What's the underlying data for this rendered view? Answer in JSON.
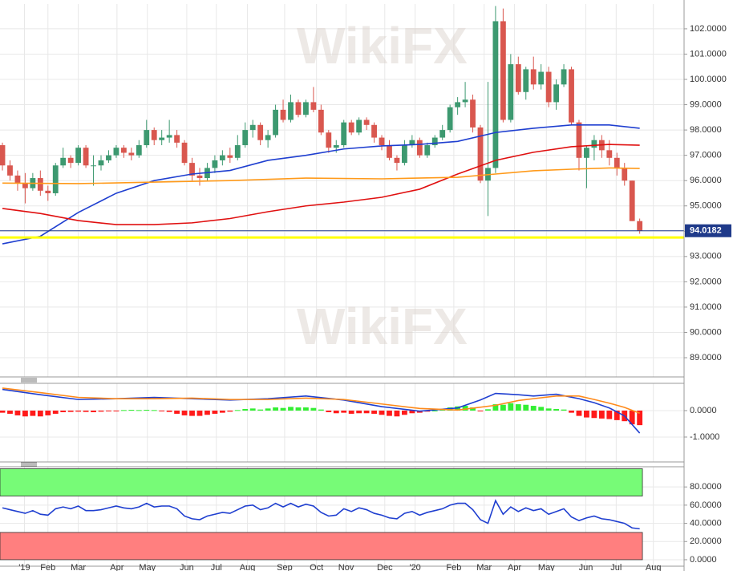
{
  "watermark": "WikiFX",
  "chart_data": [
    {
      "type": "candlestick",
      "xlim": [
        -0.32,
        89.85
      ],
      "ylim": [
        88.24,
        102.98
      ],
      "yticks": [
        {
          "value": 89,
          "label": "89.0000"
        },
        {
          "value": 90,
          "label": "90.0000"
        },
        {
          "value": 91,
          "label": "91.0000"
        },
        {
          "value": 92,
          "label": "92.0000"
        },
        {
          "value": 93,
          "label": "93.0000"
        },
        {
          "value": 94,
          "label": "94.0000"
        },
        {
          "value": 95,
          "label": "95.0000"
        },
        {
          "value": 96,
          "label": "96.0000"
        },
        {
          "value": 97,
          "label": "97.0000"
        },
        {
          "value": 98,
          "label": "98.0000"
        },
        {
          "value": 99,
          "label": "99.0000"
        },
        {
          "value": 100,
          "label": "100.0000"
        },
        {
          "value": 101,
          "label": "101.0000"
        },
        {
          "value": 102,
          "label": "102.0000"
        }
      ],
      "grid": true,
      "up_color": "#3d9970",
      "down_color": "#d9574f",
      "last_price": 94.0182,
      "last_price_color": "#1f3a8a",
      "support": 93.75,
      "support_color": "#ffff00",
      "candles": [
        [
          97.4,
          97.5,
          96.4,
          96.6
        ],
        [
          96.6,
          96.8,
          96.0,
          96.2
        ],
        [
          96.2,
          96.4,
          95.6,
          95.9
        ],
        [
          95.9,
          96.3,
          95.1,
          95.7
        ],
        [
          95.7,
          96.3,
          95.6,
          96.1
        ],
        [
          96.1,
          96.4,
          95.4,
          95.6
        ],
        [
          95.6,
          95.8,
          95.2,
          95.5
        ],
        [
          95.5,
          96.7,
          95.4,
          96.6
        ],
        [
          96.6,
          97.3,
          96.5,
          96.9
        ],
        [
          96.9,
          97.0,
          96.5,
          96.7
        ],
        [
          96.7,
          97.4,
          96.6,
          97.3
        ],
        [
          97.3,
          97.4,
          96.5,
          96.6
        ],
        [
          96.6,
          97.0,
          95.8,
          96.6
        ],
        [
          96.6,
          97.0,
          96.4,
          96.8
        ],
        [
          96.8,
          97.2,
          96.7,
          97.0
        ],
        [
          97.0,
          97.4,
          96.9,
          97.3
        ],
        [
          97.3,
          97.4,
          96.9,
          97.1
        ],
        [
          97.1,
          97.3,
          96.8,
          97.0
        ],
        [
          97.0,
          97.6,
          96.9,
          97.4
        ],
        [
          97.4,
          98.4,
          97.3,
          98.0
        ],
        [
          98.0,
          98.1,
          97.4,
          97.6
        ],
        [
          97.6,
          98.0,
          97.4,
          97.7
        ],
        [
          97.7,
          98.4,
          97.5,
          97.8
        ],
        [
          97.8,
          98.0,
          97.3,
          97.5
        ],
        [
          97.5,
          97.6,
          96.6,
          96.7
        ],
        [
          96.7,
          96.9,
          96.0,
          96.2
        ],
        [
          96.2,
          96.5,
          95.8,
          96.1
        ],
        [
          96.1,
          96.7,
          96.0,
          96.5
        ],
        [
          96.5,
          97.0,
          96.3,
          96.8
        ],
        [
          96.8,
          97.2,
          96.6,
          97.0
        ],
        [
          97.0,
          97.3,
          96.7,
          96.9
        ],
        [
          96.9,
          97.8,
          96.8,
          97.4
        ],
        [
          97.4,
          98.3,
          97.3,
          98.0
        ],
        [
          98.0,
          98.4,
          97.7,
          98.2
        ],
        [
          98.2,
          98.3,
          97.4,
          97.6
        ],
        [
          97.6,
          98.0,
          97.3,
          97.8
        ],
        [
          97.8,
          99.0,
          97.7,
          98.8
        ],
        [
          98.8,
          99.2,
          98.3,
          98.4
        ],
        [
          98.4,
          99.4,
          98.3,
          99.1
        ],
        [
          99.1,
          99.2,
          98.5,
          98.6
        ],
        [
          98.6,
          99.2,
          98.5,
          99.1
        ],
        [
          99.1,
          99.7,
          98.7,
          98.8
        ],
        [
          98.8,
          99.0,
          97.8,
          97.9
        ],
        [
          97.9,
          98.0,
          97.1,
          97.3
        ],
        [
          97.3,
          97.6,
          97.1,
          97.4
        ],
        [
          97.4,
          98.4,
          97.3,
          98.3
        ],
        [
          98.3,
          98.4,
          97.8,
          97.9
        ],
        [
          97.9,
          98.5,
          97.8,
          98.4
        ],
        [
          98.4,
          98.5,
          98.0,
          98.2
        ],
        [
          98.2,
          98.3,
          97.5,
          97.7
        ],
        [
          97.7,
          97.8,
          97.2,
          97.4
        ],
        [
          97.4,
          97.6,
          96.8,
          96.9
        ],
        [
          96.9,
          97.0,
          96.4,
          96.7
        ],
        [
          96.7,
          97.6,
          96.6,
          97.4
        ],
        [
          97.4,
          97.8,
          97.3,
          97.6
        ],
        [
          97.6,
          97.7,
          96.9,
          97.0
        ],
        [
          97.0,
          97.5,
          96.9,
          97.4
        ],
        [
          97.4,
          97.8,
          97.3,
          97.7
        ],
        [
          97.7,
          98.2,
          97.6,
          98.0
        ],
        [
          98.0,
          99.0,
          97.9,
          98.9
        ],
        [
          98.9,
          99.3,
          98.6,
          99.1
        ],
        [
          99.1,
          99.9,
          98.9,
          99.2
        ],
        [
          99.2,
          99.4,
          97.9,
          98.1
        ],
        [
          98.1,
          98.2,
          95.9,
          96.0
        ],
        [
          96.0,
          99.9,
          94.6,
          96.5
        ],
        [
          96.5,
          102.9,
          96.3,
          102.3
        ],
        [
          102.3,
          102.8,
          98.3,
          98.4
        ],
        [
          98.4,
          101.0,
          98.3,
          100.6
        ],
        [
          100.6,
          100.9,
          99.4,
          99.5
        ],
        [
          99.5,
          100.5,
          99.2,
          100.4
        ],
        [
          100.4,
          100.9,
          99.6,
          99.8
        ],
        [
          99.8,
          100.6,
          99.6,
          100.3
        ],
        [
          100.3,
          100.5,
          98.9,
          99.1
        ],
        [
          99.1,
          100.0,
          98.8,
          99.8
        ],
        [
          99.8,
          100.6,
          99.7,
          100.4
        ],
        [
          100.4,
          100.5,
          98.2,
          98.3
        ],
        [
          98.3,
          98.4,
          96.4,
          96.9
        ],
        [
          96.9,
          97.4,
          95.7,
          97.3
        ],
        [
          97.3,
          97.8,
          96.8,
          97.6
        ],
        [
          97.6,
          97.8,
          96.9,
          97.2
        ],
        [
          97.2,
          97.6,
          96.6,
          96.9
        ],
        [
          96.9,
          97.1,
          96.2,
          96.5
        ],
        [
          96.5,
          96.7,
          95.8,
          96.0
        ],
        [
          96.0,
          96.0,
          94.4,
          94.4
        ],
        [
          94.4,
          94.5,
          93.9,
          94.0182
        ]
      ],
      "series": [
        {
          "color": "#1f3fd0",
          "x": [
            0,
            5,
            10,
            15,
            20,
            25,
            30,
            35,
            40,
            45,
            50,
            55,
            60,
            65,
            70,
            75,
            80,
            84
          ],
          "values": [
            93.5,
            93.8,
            94.74,
            95.5,
            96.0,
            96.26,
            96.4,
            96.8,
            97.0,
            97.25,
            97.37,
            97.43,
            97.55,
            97.9,
            98.07,
            98.2,
            98.2,
            98.07
          ]
        },
        {
          "color": "#e01010",
          "x": [
            0,
            5,
            10,
            15,
            20,
            25,
            30,
            35,
            40,
            45,
            50,
            55,
            60,
            65,
            70,
            75,
            80,
            84
          ],
          "values": [
            94.9,
            94.7,
            94.42,
            94.26,
            94.26,
            94.33,
            94.5,
            94.77,
            95.0,
            95.15,
            95.34,
            95.66,
            96.26,
            96.8,
            97.12,
            97.34,
            97.43,
            97.4
          ]
        },
        {
          "color": "#ff9a1a",
          "x": [
            0,
            10,
            20,
            30,
            40,
            50,
            60,
            65,
            70,
            75,
            80,
            84
          ],
          "values": [
            95.9,
            95.88,
            95.94,
            96.0,
            96.1,
            96.07,
            96.13,
            96.26,
            96.39,
            96.45,
            96.5,
            96.48
          ]
        }
      ]
    },
    {
      "type": "macd",
      "xlim": [
        -0.32,
        89.85
      ],
      "ylim": [
        -1.94,
        1.03
      ],
      "yticks": [
        {
          "value": 0,
          "label": "0.0000"
        },
        {
          "value": -1,
          "label": "-1.0000"
        }
      ],
      "grid": true,
      "pos_color": "#33ee33",
      "neg_color": "#ff1a1a",
      "histogram": [
        -0.08,
        -0.12,
        -0.18,
        -0.22,
        -0.2,
        -0.22,
        -0.18,
        -0.12,
        -0.06,
        -0.05,
        -0.04,
        -0.05,
        -0.06,
        -0.04,
        -0.03,
        -0.02,
        0.02,
        0.03,
        0.02,
        0.03,
        0.02,
        -0.02,
        -0.05,
        -0.12,
        -0.18,
        -0.2,
        -0.2,
        -0.16,
        -0.12,
        -0.08,
        -0.04,
        0.02,
        0.06,
        0.08,
        0.04,
        0.08,
        0.12,
        0.1,
        0.14,
        0.12,
        0.12,
        0.1,
        0.04,
        -0.06,
        -0.1,
        -0.08,
        -0.12,
        -0.1,
        -0.1,
        -0.12,
        -0.16,
        -0.2,
        -0.22,
        -0.16,
        -0.1,
        -0.08,
        -0.04,
        0.0,
        0.05,
        0.12,
        0.16,
        0.18,
        0.12,
        -0.02,
        0.05,
        0.24,
        0.22,
        0.28,
        0.24,
        0.22,
        0.18,
        0.14,
        0.08,
        0.06,
        0.04,
        -0.08,
        -0.2,
        -0.26,
        -0.28,
        -0.3,
        -0.32,
        -0.36,
        -0.4,
        -0.52,
        -0.55
      ],
      "series": [
        {
          "color": "#1f3fd0",
          "x": [
            0,
            5,
            10,
            15,
            20,
            25,
            30,
            35,
            40,
            45,
            50,
            55,
            60,
            63,
            65,
            68,
            70,
            73,
            76,
            78,
            80,
            82,
            84
          ],
          "values": [
            0.8,
            0.6,
            0.42,
            0.45,
            0.5,
            0.45,
            0.4,
            0.45,
            0.55,
            0.4,
            0.15,
            -0.02,
            0.1,
            0.4,
            0.65,
            0.6,
            0.55,
            0.62,
            0.45,
            0.3,
            0.1,
            -0.2,
            -0.85
          ]
        },
        {
          "color": "#ff8a1a",
          "x": [
            0,
            5,
            10,
            15,
            20,
            25,
            30,
            35,
            40,
            45,
            50,
            55,
            60,
            65,
            68,
            70,
            73,
            76,
            78,
            80,
            82,
            84
          ],
          "values": [
            0.85,
            0.68,
            0.5,
            0.45,
            0.45,
            0.47,
            0.42,
            0.42,
            0.47,
            0.42,
            0.25,
            0.08,
            0.02,
            0.2,
            0.38,
            0.45,
            0.55,
            0.55,
            0.42,
            0.28,
            0.12,
            -0.1
          ]
        }
      ]
    },
    {
      "type": "rsi",
      "xlim": [
        -0.32,
        89.85
      ],
      "ylim": [
        -7.1,
        102.2
      ],
      "yticks": [
        {
          "value": 0,
          "label": "0.0000"
        },
        {
          "value": 20,
          "label": "20.0000"
        },
        {
          "value": 40,
          "label": "40.0000"
        },
        {
          "value": 60,
          "label": "60.0000"
        },
        {
          "value": 80,
          "label": "80.0000"
        }
      ],
      "grid": true,
      "bands": [
        {
          "from": 70,
          "to": 100,
          "color": "#77fb77"
        },
        {
          "from": 0,
          "to": 30,
          "color": "#ff7f7f"
        }
      ],
      "series": [
        {
          "color": "#1f3fd0",
          "values": [
            57,
            55,
            53,
            51,
            54,
            50,
            49,
            56,
            58,
            56,
            59,
            54,
            54,
            55,
            57,
            59,
            57,
            56,
            58,
            62,
            58,
            59,
            59,
            56,
            48,
            45,
            44,
            48,
            50,
            52,
            51,
            55,
            59,
            60,
            55,
            57,
            62,
            58,
            62,
            58,
            61,
            59,
            52,
            48,
            49,
            56,
            53,
            57,
            55,
            51,
            49,
            46,
            45,
            51,
            53,
            49,
            52,
            54,
            56,
            60,
            62,
            62,
            55,
            44,
            40,
            65,
            50,
            58,
            53,
            57,
            54,
            56,
            50,
            53,
            56,
            47,
            43,
            46,
            48,
            45,
            44,
            42,
            40,
            35,
            34
          ]
        }
      ],
      "xticks": [
        {
          "value": 2.9,
          "label": "'19"
        },
        {
          "value": 6,
          "label": "Feb"
        },
        {
          "value": 10,
          "label": "Mar"
        },
        {
          "value": 15.1,
          "label": "Apr"
        },
        {
          "value": 19.1,
          "label": "May"
        },
        {
          "value": 24.3,
          "label": "Jun"
        },
        {
          "value": 28.2,
          "label": "Jul"
        },
        {
          "value": 32.3,
          "label": "Aug"
        },
        {
          "value": 37.2,
          "label": "Sep"
        },
        {
          "value": 41.4,
          "label": "Oct"
        },
        {
          "value": 45.3,
          "label": "Nov"
        },
        {
          "value": 50.4,
          "label": "Dec"
        },
        {
          "value": 54.4,
          "label": "'20"
        },
        {
          "value": 59.5,
          "label": "Feb"
        },
        {
          "value": 63.5,
          "label": "Mar"
        },
        {
          "value": 67.5,
          "label": "Apr"
        },
        {
          "value": 71.7,
          "label": "May"
        },
        {
          "value": 76.9,
          "label": "Jun"
        },
        {
          "value": 80.9,
          "label": "Jul"
        },
        {
          "value": 85.8,
          "label": "Aug"
        }
      ]
    }
  ]
}
